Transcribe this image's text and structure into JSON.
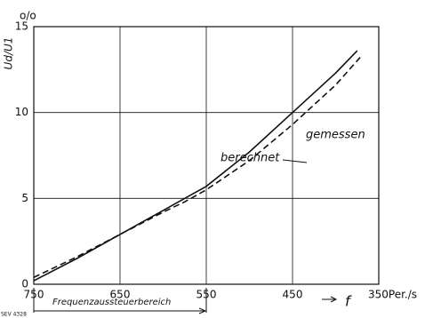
{
  "chart_data": {
    "type": "line",
    "y_unit": "o/o",
    "y_label": "Ud/U1",
    "x_label": "f",
    "annotations": [
      "berechnet",
      "gemessen"
    ],
    "range_label": "Frequenzaussteuerbereich",
    "figure_code": "SEV 4328",
    "series": [
      {
        "name": "berechnet",
        "color": "#111",
        "dashed": false,
        "x": [
          750,
          700,
          650,
          600,
          575,
          550,
          500,
          450,
          400,
          375
        ],
        "values": [
          0.2,
          1.5,
          2.9,
          4.3,
          5.0,
          5.7,
          7.7,
          10.0,
          12.3,
          13.6
        ]
      },
      {
        "name": "gemessen",
        "color": "#111",
        "dashed": true,
        "x": [
          750,
          700,
          650,
          600,
          575,
          550,
          500,
          450,
          400,
          370
        ],
        "values": [
          0.4,
          1.6,
          2.9,
          4.2,
          4.8,
          5.5,
          7.2,
          9.3,
          11.6,
          13.3
        ]
      }
    ],
    "xlim": [
      750,
      350
    ],
    "xticks": [
      750,
      650,
      550,
      450,
      {
        "value": 350,
        "label": "350Per./s"
      }
    ],
    "ylim": [
      0,
      15
    ],
    "yticks": [
      0,
      5,
      10,
      15
    ],
    "grid": true
  }
}
